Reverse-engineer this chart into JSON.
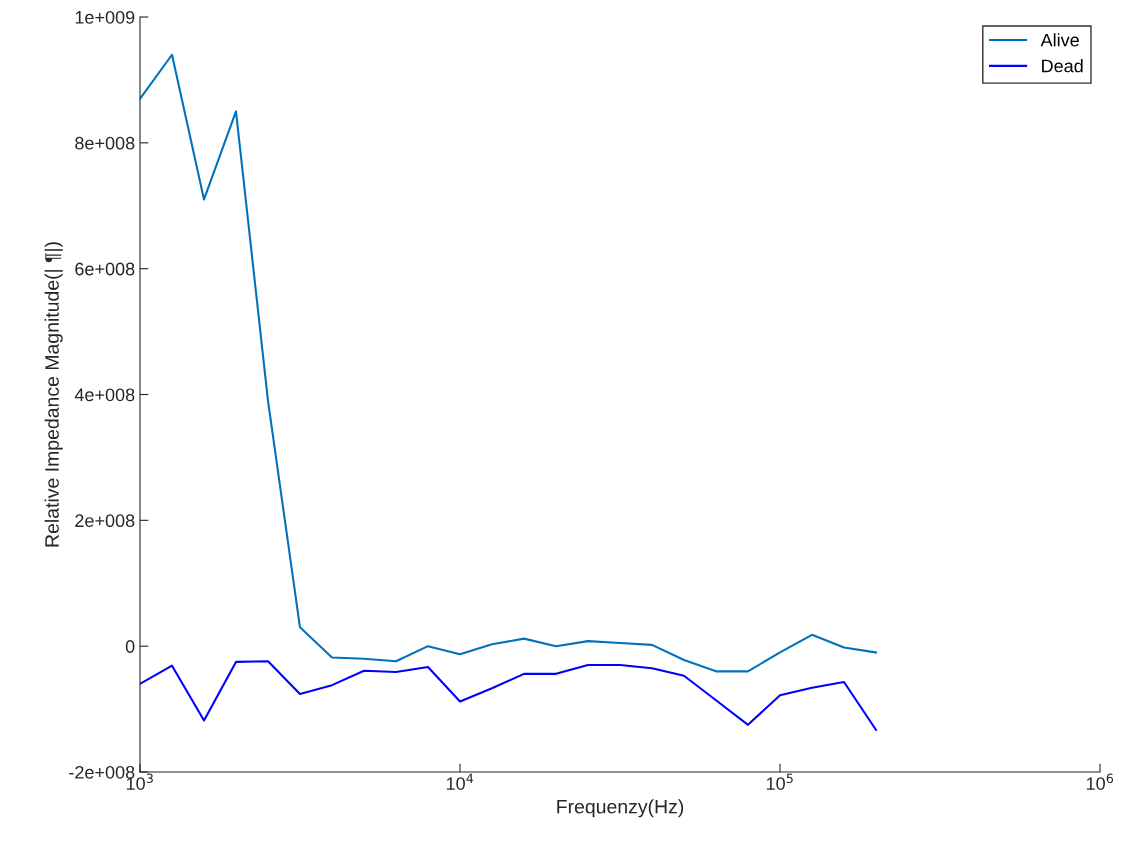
{
  "chart_data": {
    "type": "line",
    "xlabel": "Frequenzy(Hz)",
    "ylabel": "Relative Impedance Magnitude(| ¶|)",
    "x": [
      1000,
      1259,
      1585,
      1995,
      2512,
      3162,
      3981,
      5012,
      6310,
      7943,
      10000,
      12589,
      15849,
      19953,
      25119,
      31623,
      39811,
      50119,
      63096,
      79433,
      100000,
      125893,
      158489,
      199526
    ],
    "series": [
      {
        "name": "Alive",
        "color": "#0072bd",
        "values": [
          870000000,
          940000000,
          710000000,
          850000000,
          390000000,
          30000000,
          -18000000,
          -20000000,
          -24000000,
          0,
          -13000000,
          3000000,
          12000000,
          0,
          8000000,
          5000000,
          2000000,
          -22000000,
          -40000000,
          -40000000,
          -10000000,
          18000000,
          -2000000,
          -10000000
        ]
      },
      {
        "name": "Dead",
        "color": "#0000ff",
        "values": [
          -60000000,
          -31000000,
          -118000000,
          -25000000,
          -24000000,
          -76000000,
          -62000000,
          -39000000,
          -41000000,
          -33000000,
          -88000000,
          -67000000,
          -44000000,
          -44000000,
          -30000000,
          -30000000,
          -35000000,
          -47000000,
          -86000000,
          -125000000,
          -78000000,
          -66000000,
          -57000000,
          -133000000
        ]
      }
    ],
    "log": "x",
    "xlim": [
      1000,
      1000000
    ],
    "xticks": [
      {
        "value": 1000,
        "label": "10$^{3}$"
      },
      {
        "value": 10000,
        "label": "10$^{4}$"
      },
      {
        "value": 100000,
        "label": "10$^{5}$"
      },
      {
        "value": 1000000,
        "label": "10$^{6}$"
      }
    ],
    "ylim": [
      -200000000,
      1000000000
    ],
    "yticks": [
      {
        "value": -200000000,
        "label": "-2e+008"
      },
      {
        "value": 0,
        "label": "0"
      },
      {
        "value": 200000000,
        "label": "2e+008"
      },
      {
        "value": 400000000,
        "label": "4e+008"
      },
      {
        "value": 600000000,
        "label": "6e+008"
      },
      {
        "value": 800000000,
        "label": "8e+008"
      },
      {
        "value": 1000000000,
        "label": "1e+009"
      }
    ],
    "legend": "top right",
    "grid": false
  }
}
